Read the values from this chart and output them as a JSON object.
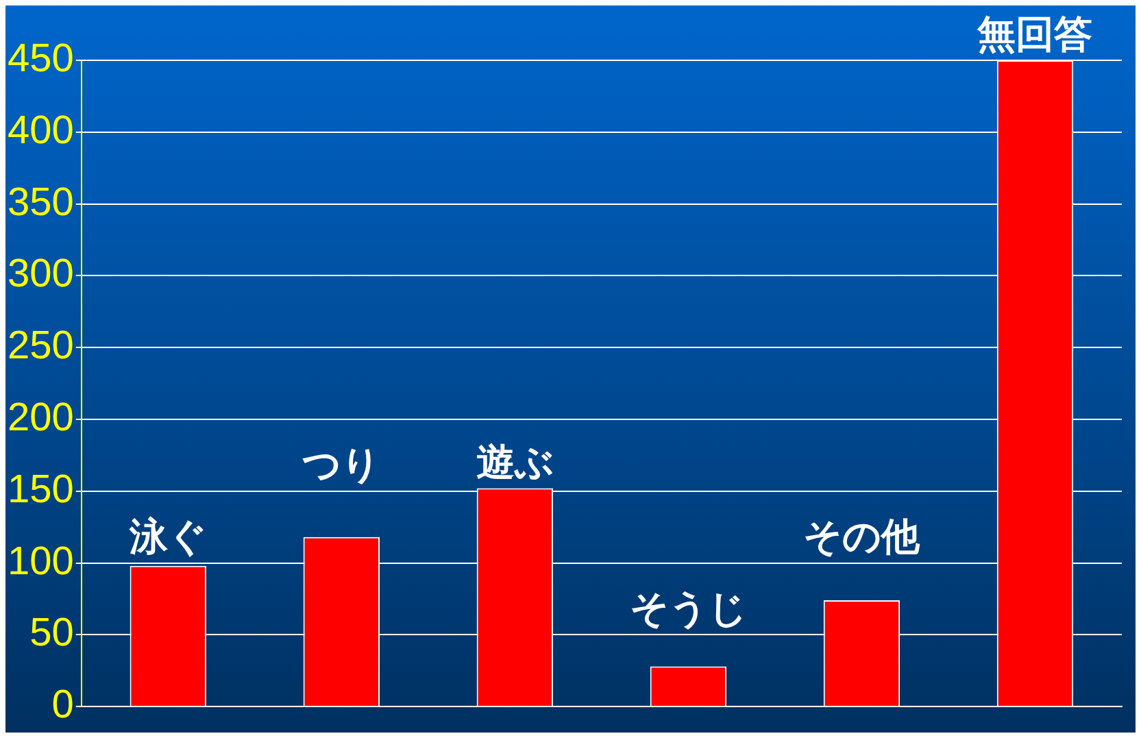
{
  "chart_data": {
    "type": "bar",
    "categories": [
      "泳ぐ",
      "つり",
      "遊ぶ",
      "そうじ",
      "その他",
      "無回答"
    ],
    "values": [
      98,
      118,
      152,
      28,
      74,
      450
    ],
    "color": "#ff0000",
    "ylim": [
      0,
      450
    ],
    "yticks": [
      0,
      50,
      100,
      150,
      200,
      250,
      300,
      350,
      400,
      450
    ],
    "grid": "y"
  }
}
